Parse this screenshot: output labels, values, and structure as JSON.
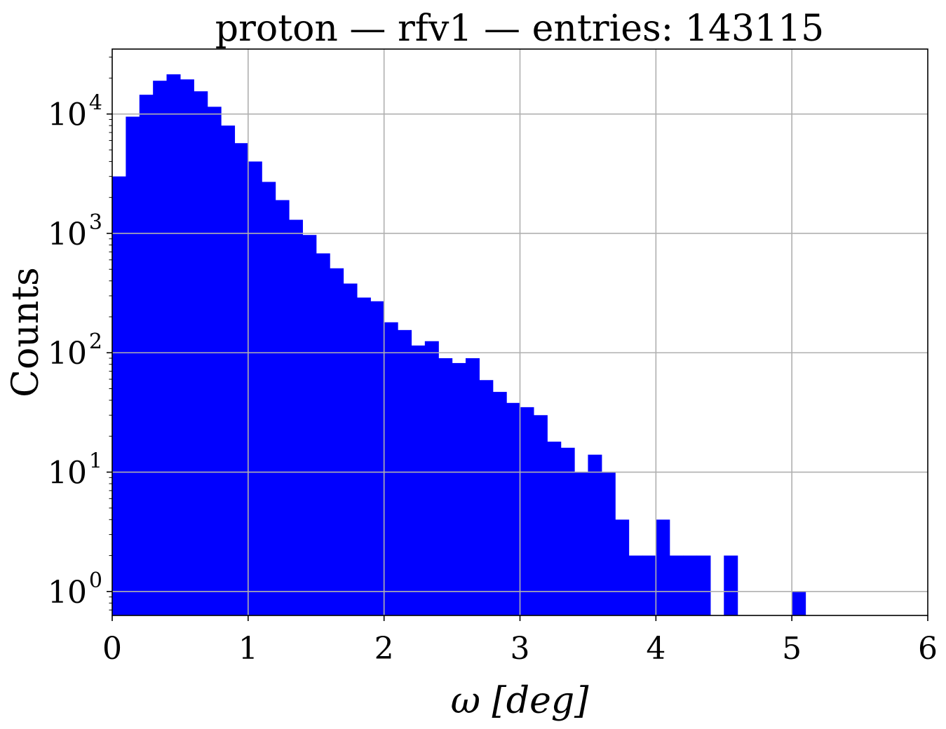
{
  "chart_data": {
    "type": "bar",
    "title": "proton — rfv1 — entries: 143115",
    "xlabel": "ω [deg]",
    "ylabel": "Counts",
    "xlim": [
      0,
      6
    ],
    "ylim": [
      0.63,
      35000
    ],
    "yscale": "log",
    "grid": true,
    "bar_color": "#0000ff",
    "bin_width": 0.1,
    "x_ticks": [
      0,
      1,
      2,
      3,
      4,
      5,
      6
    ],
    "x_tick_labels": [
      "0",
      "1",
      "2",
      "3",
      "4",
      "5",
      "6"
    ],
    "y_ticks": [
      {
        "value": 1,
        "base": "10",
        "exp": "0"
      },
      {
        "value": 10,
        "base": "10",
        "exp": "1"
      },
      {
        "value": 100,
        "base": "10",
        "exp": "2"
      },
      {
        "value": 1000,
        "base": "10",
        "exp": "3"
      },
      {
        "value": 10000,
        "base": "10",
        "exp": "4"
      }
    ],
    "bin_starts": [
      0.0,
      0.1,
      0.2,
      0.3,
      0.4,
      0.5,
      0.6,
      0.7,
      0.8,
      0.9,
      1.0,
      1.1,
      1.2,
      1.3,
      1.4,
      1.5,
      1.6,
      1.7,
      1.8,
      1.9,
      2.0,
      2.1,
      2.2,
      2.3,
      2.4,
      2.5,
      2.6,
      2.7,
      2.8,
      2.9,
      3.0,
      3.1,
      3.2,
      3.3,
      3.4,
      3.5,
      3.6,
      3.7,
      3.8,
      3.9,
      4.0,
      4.1,
      4.2,
      4.3,
      4.4,
      4.5,
      4.6,
      4.7,
      4.8,
      4.9,
      5.0
    ],
    "values": [
      3000,
      9500,
      14500,
      19000,
      21500,
      19500,
      15500,
      11500,
      8000,
      5700,
      4000,
      2700,
      1900,
      1300,
      970,
      680,
      510,
      380,
      290,
      270,
      180,
      155,
      115,
      125,
      90,
      82,
      90,
      59,
      47,
      38,
      35,
      30,
      18,
      16,
      10,
      14,
      10,
      4,
      2,
      2,
      4,
      2,
      2,
      2,
      0,
      2,
      0,
      0,
      0,
      0,
      1
    ]
  }
}
